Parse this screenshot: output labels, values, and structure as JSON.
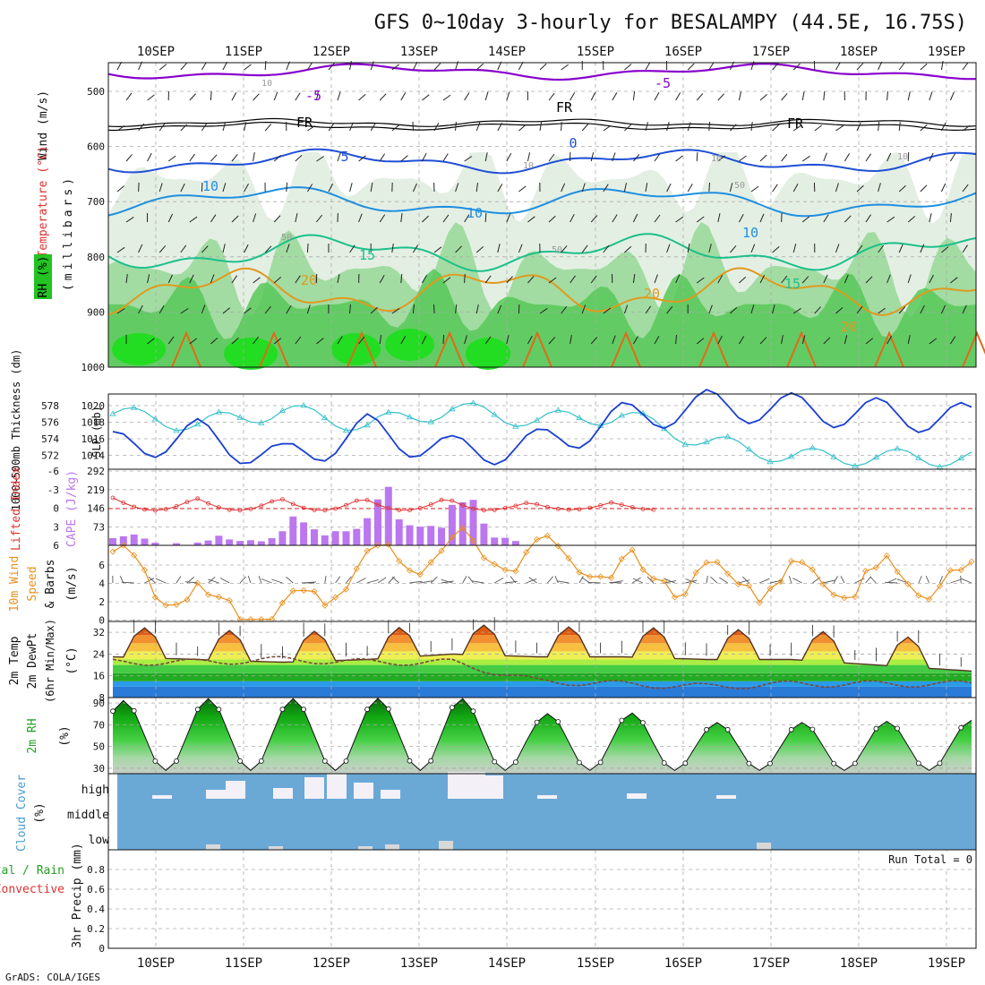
{
  "title": "GFS 0~10day 3-hourly for BESALAMPY (44.5E, 16.75S)",
  "footer": "GrADS: COLA/IGES",
  "dates": [
    "10SEP",
    "11SEP",
    "12SEP",
    "13SEP",
    "14SEP",
    "15SEP",
    "16SEP",
    "17SEP",
    "18SEP",
    "19SEP"
  ],
  "colors": {
    "purple": "#8800cc",
    "black": "#000000",
    "blue": "#1f4fd6",
    "skyblue": "#1f8fe0",
    "teal": "#1cc08a",
    "orange": "#e09a20",
    "red": "#e03030",
    "cyan": "#33c0c8",
    "slp": "#1a3fd0",
    "cape": "#bb77ee",
    "wind": "#e8901c",
    "cloud": "#6aa9d6",
    "rh_green": "#22c322",
    "grid": "#aaaaaa"
  },
  "panels": {
    "profile": {
      "axis_labels": [
        "Wind (m/s)",
        "Temperature (°C)",
        "RH (%)"
      ],
      "unit_label": "(millibars)",
      "y_ticks": [
        "500",
        "600",
        "700",
        "800",
        "900",
        "1000"
      ],
      "contour_labels": [
        "-5",
        "-5",
        "FR",
        "FR",
        "FR",
        "5",
        "0",
        "10",
        "10",
        "10",
        "15",
        "15",
        "20",
        "20",
        "20",
        "10",
        "10",
        "10",
        "50",
        "50",
        "50",
        "10"
      ]
    },
    "thickness": {
      "left_label": "1000~500mb Thickness (dm)",
      "right_label": "SLP (mb)",
      "left_ticks": [
        "578",
        "576",
        "574",
        "572"
      ],
      "right_ticks": [
        "1020",
        "1018",
        "1016",
        "1014"
      ]
    },
    "cape": {
      "left_label": "Lifted Index",
      "right_label": "CAPE (J/kg)",
      "left_ticks": [
        "-6",
        "-3",
        "0",
        "3",
        "6"
      ],
      "right_ticks": [
        "292",
        "219",
        "146",
        "73"
      ]
    },
    "wind10m": {
      "label_1": "10m Wind",
      "label_2": "Speed",
      "label_3": "& Barbs",
      "unit": "(m/s)",
      "y_ticks": [
        "6",
        "4",
        "2",
        "0"
      ]
    },
    "temp2m": {
      "label_1": "2m Temp",
      "label_2": "2m DewPt",
      "label_3": "(6hr Min/Max)",
      "unit": "(°C)",
      "y_ticks": [
        "32",
        "24",
        "16",
        "8"
      ]
    },
    "rh2m": {
      "label": "2m RH",
      "unit": "(%)",
      "y_ticks": [
        "90",
        "70",
        "50",
        "30"
      ]
    },
    "cloud": {
      "label": "Cloud Cover",
      "unit": "(%)",
      "levels": [
        "high",
        "middle",
        "low"
      ]
    },
    "precip": {
      "label_1": "Total / Rain",
      "label_2": "Convective",
      "axis": "3hr Precip (mm)",
      "y_ticks": [
        "0.8",
        "0.6",
        "0.4",
        "0.2",
        "0"
      ],
      "run_total": "Run Total = 0"
    }
  },
  "chart_data": [
    {
      "type": "line",
      "title": "1000~500mb Thickness (dm) / SLP (mb)",
      "x": [
        "10SEP",
        "11SEP",
        "12SEP",
        "13SEP",
        "14SEP",
        "15SEP",
        "16SEP",
        "17SEP",
        "18SEP",
        "19SEP"
      ],
      "series": [
        {
          "name": "1000~500mb Thickness (dm)",
          "values": [
            577.2,
            575.9,
            577.6,
            575.8,
            577.8,
            576.4,
            577.0,
            573.7,
            571.9,
            571.8
          ]
        },
        {
          "name": "SLP (mb)",
          "values": [
            1015.0,
            1016.6,
            1013.5,
            1017.2,
            1014.5,
            1015.3,
            1018.6,
            1020.2,
            1019.8,
            1019.2
          ]
        }
      ],
      "ylim_left": [
        571,
        579
      ],
      "ylim_right": [
        1013,
        1021
      ]
    },
    {
      "type": "bar",
      "title": "CAPE (J/kg)",
      "x": [
        "10SEP",
        "11SEP",
        "12SEP",
        "13SEP",
        "14SEP",
        "15SEP",
        "16SEP",
        "17SEP",
        "18SEP",
        "19SEP"
      ],
      "values": [
        60,
        20,
        90,
        210,
        280,
        0,
        0,
        0,
        0,
        0
      ],
      "ylim": [
        0,
        292
      ]
    },
    {
      "type": "line",
      "title": "10m Wind Speed (m/s)",
      "x": [
        "10SEP",
        "11SEP",
        "12SEP",
        "13SEP",
        "14SEP",
        "15SEP",
        "16SEP",
        "17SEP",
        "18SEP",
        "19SEP"
      ],
      "values": [
        6.0,
        2.0,
        0.3,
        6.3,
        7.0,
        6.5,
        4.8,
        4.2,
        4.2,
        4.3
      ],
      "ylim": [
        0,
        7.5
      ]
    },
    {
      "type": "line",
      "title": "2m Temp / DewPt (°C)",
      "x": [
        "10SEP",
        "11SEP",
        "12SEP",
        "13SEP",
        "14SEP",
        "15SEP",
        "16SEP",
        "17SEP",
        "18SEP",
        "19SEP"
      ],
      "series": [
        {
          "name": "2m Temp",
          "values": [
            25,
            24,
            23,
            24,
            26,
            25,
            25,
            24,
            24,
            22
          ]
        },
        {
          "name": "2m DewPt",
          "values": [
            21,
            21,
            22,
            21,
            21,
            14,
            13,
            12,
            13,
            13
          ]
        }
      ],
      "ylim": [
        8,
        36
      ]
    },
    {
      "type": "area",
      "title": "2m RH (%)",
      "x": [
        "10SEP",
        "11SEP",
        "12SEP",
        "13SEP",
        "14SEP",
        "15SEP",
        "16SEP",
        "17SEP",
        "18SEP",
        "19SEP"
      ],
      "values": [
        92,
        94,
        94,
        94,
        96,
        80,
        82,
        72,
        72,
        73
      ],
      "ylim": [
        25,
        95
      ]
    }
  ]
}
